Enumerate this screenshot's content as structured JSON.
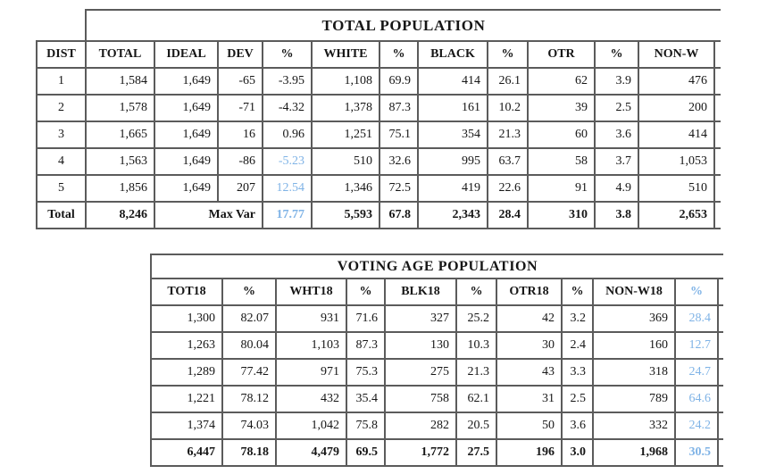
{
  "page": {
    "background_color": "#ffffff",
    "text_color": "#161616",
    "border_color": "#5b5b5b",
    "highlight_color": "#7fb3e6"
  },
  "total_population_table": {
    "title": "TOTAL POPULATION",
    "columns": [
      "DIST",
      "TOTAL",
      "IDEAL",
      "DEV",
      "%",
      "WHITE",
      "%",
      "BLACK",
      "%",
      "OTR",
      "%",
      "NON-W"
    ],
    "rows": [
      [
        "1",
        "1,584",
        "1,649",
        "-65",
        "-3.95",
        "1,108",
        "69.9",
        "414",
        "26.1",
        "62",
        "3.9",
        "476"
      ],
      [
        "2",
        "1,578",
        "1,649",
        "-71",
        "-4.32",
        "1,378",
        "87.3",
        "161",
        "10.2",
        "39",
        "2.5",
        "200"
      ],
      [
        "3",
        "1,665",
        "1,649",
        "16",
        "0.96",
        "1,251",
        "75.1",
        "354",
        "21.3",
        "60",
        "3.6",
        "414"
      ],
      [
        "4",
        "1,563",
        "1,649",
        "-86",
        "-5.23",
        "510",
        "32.6",
        "995",
        "63.7",
        "58",
        "3.7",
        "1,053"
      ],
      [
        "5",
        "1,856",
        "1,649",
        "207",
        "12.54",
        "1,346",
        "72.5",
        "419",
        "22.6",
        "91",
        "4.9",
        "510"
      ]
    ],
    "highlighted_cells": [
      [
        3,
        4
      ],
      [
        4,
        4
      ]
    ],
    "total_row": {
      "label": "Total",
      "total": "8,246",
      "max_var_label": "Max Var",
      "max_var_value": "17.77",
      "values": [
        "5,593",
        "67.8",
        "2,343",
        "28.4",
        "310",
        "3.8",
        "2,653"
      ]
    }
  },
  "voting_age_table": {
    "title": "VOTING AGE POPULATION",
    "columns": [
      "TOT18",
      "%",
      "WHT18",
      "%",
      "BLK18",
      "%",
      "OTR18",
      "%",
      "NON-W18",
      "%"
    ],
    "highlighted_column_index": 9,
    "rows": [
      [
        "1,300",
        "82.07",
        "931",
        "71.6",
        "327",
        "25.2",
        "42",
        "3.2",
        "369",
        "28.4"
      ],
      [
        "1,263",
        "80.04",
        "1,103",
        "87.3",
        "130",
        "10.3",
        "30",
        "2.4",
        "160",
        "12.7"
      ],
      [
        "1,289",
        "77.42",
        "971",
        "75.3",
        "275",
        "21.3",
        "43",
        "3.3",
        "318",
        "24.7"
      ],
      [
        "1,221",
        "78.12",
        "432",
        "35.4",
        "758",
        "62.1",
        "31",
        "2.5",
        "789",
        "64.6"
      ],
      [
        "1,374",
        "74.03",
        "1,042",
        "75.8",
        "282",
        "20.5",
        "50",
        "3.6",
        "332",
        "24.2"
      ]
    ],
    "total_row": [
      "6,447",
      "78.18",
      "4,479",
      "69.5",
      "1,772",
      "27.5",
      "196",
      "3.0",
      "1,968",
      "30.5"
    ]
  }
}
